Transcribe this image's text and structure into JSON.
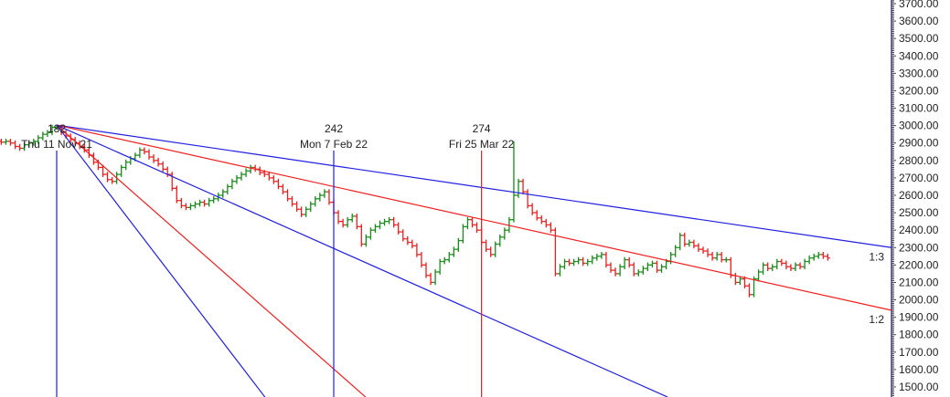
{
  "chart_data": {
    "type": "ohlc",
    "title": "",
    "ylim": [
      1500,
      3700
    ],
    "y_ticks": [
      "3700.00",
      "3600.00",
      "3500.00",
      "3400.00",
      "3300.00",
      "3200.00",
      "3100.00",
      "3000.00",
      "2900.00",
      "2800.00",
      "2700.00",
      "2600.00",
      "2500.00",
      "2400.00",
      "2300.00",
      "2200.00",
      "2100.00",
      "2000.00",
      "1900.00",
      "1800.00",
      "1700.00",
      "1600.00",
      "1500.00"
    ],
    "first_bar": 170,
    "closes": [
      2905,
      2910,
      2900,
      2880,
      2870,
      2890,
      2900,
      2910,
      2930,
      2950,
      2960,
      2990,
      2990,
      2960,
      2940,
      2920,
      2900,
      2880,
      2860,
      2830,
      2790,
      2760,
      2720,
      2690,
      2680,
      2720,
      2760,
      2790,
      2810,
      2830,
      2860,
      2850,
      2820,
      2800,
      2780,
      2750,
      2720,
      2640,
      2570,
      2540,
      2530,
      2540,
      2550,
      2560,
      2550,
      2570,
      2580,
      2600,
      2620,
      2650,
      2680,
      2700,
      2720,
      2740,
      2760,
      2750,
      2730,
      2720,
      2700,
      2680,
      2650,
      2620,
      2580,
      2550,
      2520,
      2490,
      2520,
      2550,
      2580,
      2600,
      2620,
      2560,
      2500,
      2450,
      2430,
      2460,
      2480,
      2420,
      2320,
      2360,
      2400,
      2420,
      2440,
      2450,
      2460,
      2430,
      2390,
      2350,
      2330,
      2310,
      2260,
      2200,
      2140,
      2100,
      2160,
      2220,
      2230,
      2260,
      2290,
      2340,
      2420,
      2460,
      2430,
      2400,
      2330,
      2290,
      2260,
      2320,
      2360,
      2400,
      2460,
      2600,
      2680,
      2620,
      2540,
      2500,
      2470,
      2450,
      2430,
      2400,
      2150,
      2190,
      2220,
      2210,
      2220,
      2230,
      2210,
      2220,
      2240,
      2250,
      2260,
      2200,
      2170,
      2150,
      2190,
      2230,
      2200,
      2150,
      2160,
      2180,
      2200,
      2210,
      2170,
      2190,
      2220,
      2260,
      2300,
      2370,
      2320,
      2330,
      2310,
      2290,
      2280,
      2260,
      2240,
      2260,
      2230,
      2230,
      2140,
      2100,
      2120,
      2080,
      2030,
      2120,
      2160,
      2200,
      2180,
      2190,
      2220,
      2210,
      2190,
      2180,
      2200,
      2190,
      2220,
      2240,
      2250,
      2260,
      2250,
      2240
    ],
    "high_overrides": {
      "281": 2910,
      "182": 3003
    },
    "colors": {
      "up": "#1a8a1a",
      "down": "#e82020",
      "blue": "#2020e0",
      "red": "#f02020",
      "axis": "#4040a0"
    },
    "gann_origin": {
      "bar": 182,
      "price": 3003
    },
    "gann_lines": [
      {
        "color": "blue",
        "to_bar": 362.8,
        "to_price": 2300,
        "label": "1:3"
      },
      {
        "color": "red",
        "to_bar": 362.8,
        "to_price": 1940,
        "label": "1:2"
      },
      {
        "color": "blue",
        "to_bar": 314.3,
        "to_price": 1442,
        "label": ""
      },
      {
        "color": "red",
        "to_bar": 248.9,
        "to_price": 1442,
        "label": ""
      },
      {
        "color": "blue",
        "to_bar": 227.1,
        "to_price": 1442,
        "label": ""
      }
    ],
    "markers": [
      {
        "bar": 182,
        "count": "182",
        "date": "Thu 11 Nov 21",
        "color": "blue"
      },
      {
        "bar": 242,
        "count": "242",
        "date": "Mon 7 Feb 22",
        "color": "blue"
      },
      {
        "bar": 274,
        "count": "274",
        "date": "Fri 25 Mar 22",
        "color": "red"
      }
    ]
  }
}
